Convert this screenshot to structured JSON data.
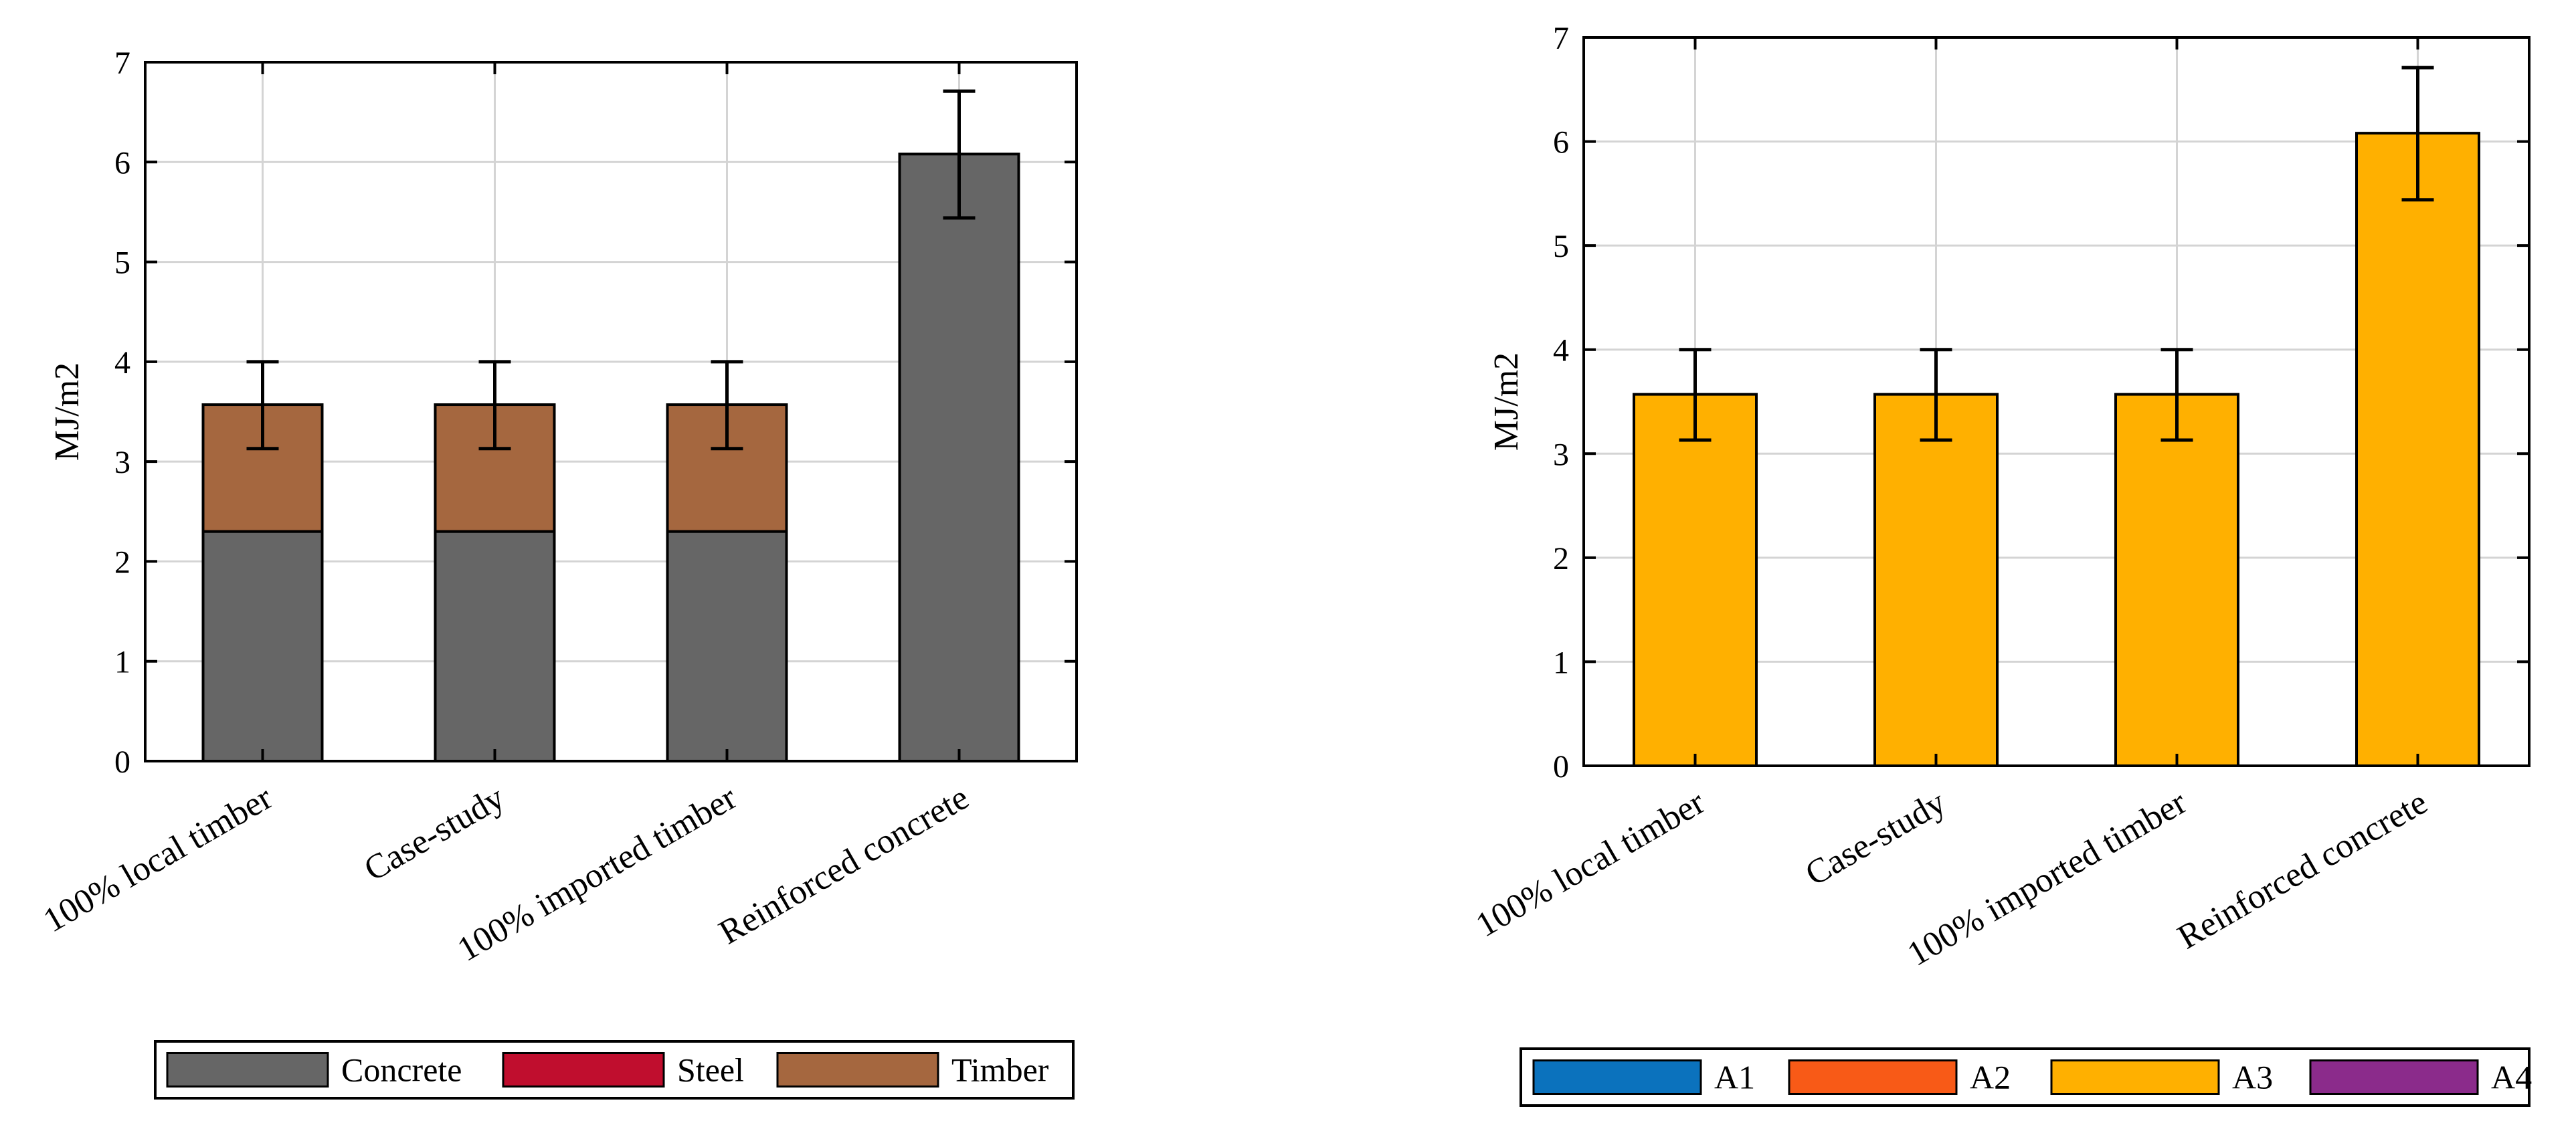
{
  "colors": {
    "Concrete": "#666666",
    "Steel": "#c00e2e",
    "Timber": "#a5673f",
    "A1": "#0b72bd",
    "A2": "#f85a17",
    "A3": "#ffb000",
    "A4": "#8b2b8b",
    "grid": "#d4d4d4"
  },
  "chart_data": [
    {
      "type": "bar",
      "stacked": true,
      "title": "",
      "xlabel": "",
      "ylabel": "MJ/m2",
      "ylim": [
        0,
        7
      ],
      "yticks": [
        0,
        1,
        2,
        3,
        4,
        5,
        6,
        7
      ],
      "grid": true,
      "legend_position": "bottom",
      "categories": [
        "100% local timber",
        "Case-study",
        "100% imported timber",
        "Reinforced concrete"
      ],
      "series": [
        {
          "name": "Concrete",
          "values": [
            2.3,
            2.3,
            2.3,
            6.08
          ]
        },
        {
          "name": "Steel",
          "values": [
            0,
            0,
            0,
            0
          ]
        },
        {
          "name": "Timber",
          "values": [
            1.27,
            1.27,
            1.27,
            0
          ]
        }
      ],
      "error_bars": [
        {
          "low": 3.13,
          "high": 4.0
        },
        {
          "low": 3.13,
          "high": 4.0
        },
        {
          "low": 3.13,
          "high": 4.0
        },
        {
          "low": 5.44,
          "high": 6.71
        }
      ]
    },
    {
      "type": "bar",
      "stacked": true,
      "title": "",
      "xlabel": "",
      "ylabel": "MJ/m2",
      "ylim": [
        0,
        7
      ],
      "yticks": [
        0,
        1,
        2,
        3,
        4,
        5,
        6,
        7
      ],
      "grid": true,
      "legend_position": "bottom",
      "categories": [
        "100% local timber",
        "Case-study",
        "100% imported timber",
        "Reinforced concrete"
      ],
      "series": [
        {
          "name": "A1",
          "values": [
            0,
            0,
            0,
            0
          ]
        },
        {
          "name": "A2",
          "values": [
            0,
            0,
            0,
            0
          ]
        },
        {
          "name": "A3",
          "values": [
            3.57,
            3.57,
            3.57,
            6.08
          ]
        },
        {
          "name": "A4",
          "values": [
            0,
            0,
            0,
            0
          ]
        }
      ],
      "error_bars": [
        {
          "low": 3.13,
          "high": 4.0
        },
        {
          "low": 3.13,
          "high": 4.0
        },
        {
          "low": 3.13,
          "high": 4.0
        },
        {
          "low": 5.44,
          "high": 6.71
        }
      ]
    }
  ]
}
